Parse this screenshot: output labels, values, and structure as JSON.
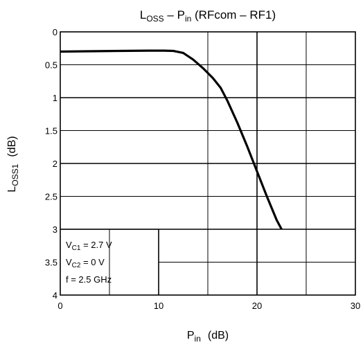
{
  "chart_data": {
    "type": "line",
    "title": {
      "main": "L",
      "main_sub": "OSS",
      "rest_a": " – P",
      "rest_sub": "in",
      "rest_b": " (RFcom – RF1)"
    },
    "xlabel": {
      "main": "P",
      "sub": "in",
      "unit": "(dB)"
    },
    "ylabel": {
      "main": "L",
      "sub": "OSS1",
      "unit": "(dB)"
    },
    "xlim": [
      0,
      30
    ],
    "ylim": [
      0,
      4
    ],
    "y_inverted": true,
    "x_ticks": [
      "0",
      "10",
      "20",
      "30"
    ],
    "y_ticks": [
      "0",
      "0.5",
      "1",
      "1.5",
      "2",
      "2.5",
      "3",
      "3.5",
      "4"
    ],
    "grid": true,
    "series": [
      {
        "x": [
          0,
          3,
          6,
          9,
          10.5,
          11.5,
          12.5,
          13.5,
          14.5,
          15.5,
          16.3,
          17,
          18,
          19,
          20,
          21,
          22,
          22.5
        ],
        "y": [
          0.3,
          0.295,
          0.29,
          0.285,
          0.285,
          0.29,
          0.32,
          0.42,
          0.55,
          0.7,
          0.85,
          1.05,
          1.38,
          1.74,
          2.12,
          2.5,
          2.86,
          3.0
        ]
      }
    ],
    "annotation": [
      {
        "main": "V",
        "sub": "C1",
        "rest": " = 2.7 V"
      },
      {
        "main": "V",
        "sub": "C2",
        "rest": " = 0 V"
      },
      {
        "main": "f = 2.5 GHz",
        "sub": "",
        "rest": ""
      }
    ]
  }
}
